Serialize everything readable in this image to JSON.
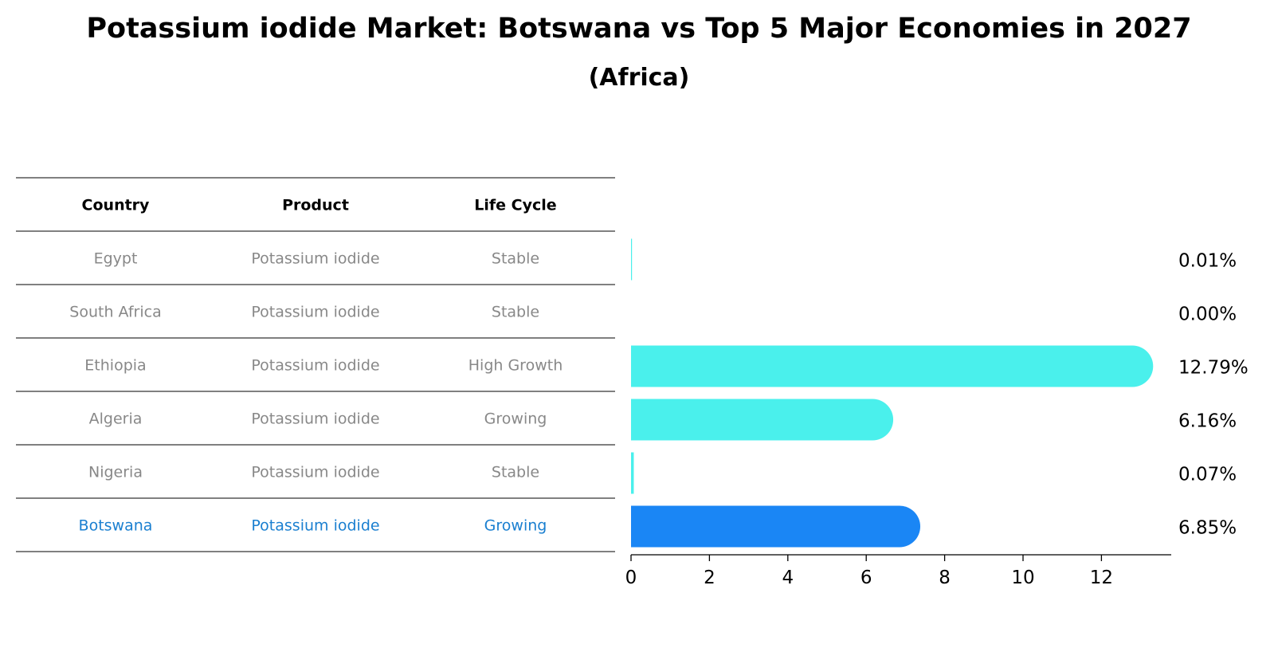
{
  "title": "Potassium iodide Market: Botswana vs Top 5 Major Economies in 2027",
  "subtitle": "(Africa)",
  "table": {
    "headers": [
      "Country",
      "Product",
      "Life Cycle"
    ],
    "rows": [
      {
        "country": "Egypt",
        "product": "Potassium iodide",
        "life_cycle": "Stable"
      },
      {
        "country": "South Africa",
        "product": "Potassium iodide",
        "life_cycle": "Stable"
      },
      {
        "country": "Ethiopia",
        "product": "Potassium iodide",
        "life_cycle": "High Growth"
      },
      {
        "country": "Algeria",
        "product": "Potassium iodide",
        "life_cycle": "Growing"
      },
      {
        "country": "Nigeria",
        "product": "Potassium iodide",
        "life_cycle": "Stable"
      },
      {
        "country": "Botswana",
        "product": "Potassium iodide",
        "life_cycle": "Growing"
      }
    ]
  },
  "chart_data": {
    "type": "bar",
    "orientation": "horizontal",
    "categories": [
      "Egypt",
      "South Africa",
      "Ethiopia",
      "Algeria",
      "Nigeria",
      "Botswana"
    ],
    "values": [
      0.01,
      0.0,
      12.79,
      6.16,
      0.07,
      6.85
    ],
    "value_labels": [
      "0.01%",
      "0.00%",
      "12.79%",
      "6.16%",
      "0.07%",
      "6.85%"
    ],
    "highlight": "Botswana",
    "xlim": [
      0,
      13.5
    ],
    "xticks": [
      0,
      2,
      4,
      6,
      8,
      10,
      12
    ],
    "grid": false
  },
  "colors": {
    "bar": "#4af0ec",
    "highlight_bar": "#1a86f5",
    "highlight_text": "#1a7fd0",
    "muted_text": "#888888",
    "line": "#000000"
  }
}
